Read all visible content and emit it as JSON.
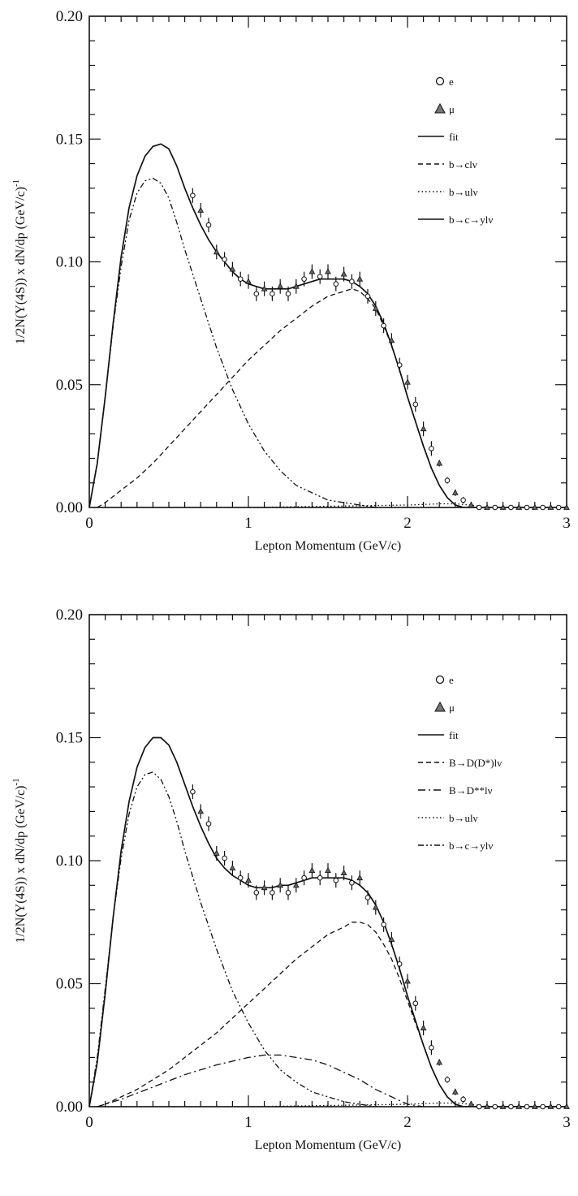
{
  "chart_data": [
    {
      "type": "line",
      "xlabel": "Lepton Momentum  (GeV/c)",
      "ylabel": "1/2N(Y(4S)) x dN/dp  (GeV/c)",
      "ylabel_sup": "-1",
      "xlim": [
        0,
        3
      ],
      "ylim": [
        0,
        0.2
      ],
      "xticks": [
        "0",
        "1",
        "2",
        "3"
      ],
      "yticks": [
        "0.00",
        "0.05",
        "0.10",
        "0.15",
        "0.20"
      ],
      "legend_position": "top-right",
      "legend": [
        "e",
        "μ",
        "fit",
        "b→clν",
        "b→ulν",
        "b→c→yl​ν"
      ],
      "series": [
        {
          "name": "fit",
          "style": "solid",
          "x": [
            0.0,
            0.05,
            0.1,
            0.15,
            0.2,
            0.25,
            0.3,
            0.35,
            0.4,
            0.45,
            0.5,
            0.55,
            0.6,
            0.65,
            0.7,
            0.75,
            0.8,
            0.85,
            0.9,
            0.95,
            1.0,
            1.05,
            1.1,
            1.15,
            1.2,
            1.25,
            1.3,
            1.35,
            1.4,
            1.45,
            1.5,
            1.55,
            1.6,
            1.65,
            1.7,
            1.75,
            1.8,
            1.85,
            1.9,
            1.95,
            2.0,
            2.05,
            2.1,
            2.15,
            2.2,
            2.25,
            2.3,
            2.35,
            2.4,
            2.5,
            2.6,
            2.7,
            2.8,
            2.9,
            3.0
          ],
          "y": [
            0.0,
            0.018,
            0.045,
            0.075,
            0.102,
            0.122,
            0.135,
            0.143,
            0.147,
            0.148,
            0.146,
            0.139,
            0.13,
            0.122,
            0.115,
            0.109,
            0.104,
            0.1,
            0.096,
            0.093,
            0.091,
            0.09,
            0.089,
            0.089,
            0.089,
            0.089,
            0.09,
            0.091,
            0.092,
            0.093,
            0.093,
            0.093,
            0.093,
            0.092,
            0.09,
            0.087,
            0.082,
            0.075,
            0.066,
            0.056,
            0.045,
            0.035,
            0.025,
            0.016,
            0.009,
            0.004,
            0.001,
            0.0,
            0.0,
            0.0,
            0.0,
            0.0,
            0.0,
            0.0,
            0.0
          ]
        },
        {
          "name": "b→clν",
          "style": "dashed",
          "x": [
            0.05,
            0.1,
            0.2,
            0.3,
            0.4,
            0.5,
            0.6,
            0.7,
            0.8,
            0.9,
            1.0,
            1.1,
            1.2,
            1.3,
            1.4,
            1.5,
            1.6,
            1.65,
            1.7,
            1.75,
            1.8,
            1.85,
            1.9,
            1.95,
            2.0,
            2.05,
            2.1,
            2.15,
            2.2,
            2.25,
            2.3,
            2.35,
            2.4
          ],
          "y": [
            0.0,
            0.002,
            0.007,
            0.012,
            0.018,
            0.025,
            0.032,
            0.039,
            0.046,
            0.053,
            0.06,
            0.066,
            0.072,
            0.077,
            0.082,
            0.086,
            0.088,
            0.089,
            0.088,
            0.085,
            0.081,
            0.074,
            0.066,
            0.056,
            0.045,
            0.035,
            0.025,
            0.016,
            0.009,
            0.004,
            0.001,
            0.0,
            0.0
          ]
        },
        {
          "name": "b→c→ylν",
          "style": "dash-dot-dot",
          "x": [
            0.0,
            0.05,
            0.1,
            0.15,
            0.2,
            0.25,
            0.3,
            0.35,
            0.4,
            0.45,
            0.5,
            0.55,
            0.6,
            0.7,
            0.8,
            0.9,
            1.0,
            1.1,
            1.2,
            1.3,
            1.4,
            1.5,
            1.6,
            1.7,
            1.8,
            1.9,
            2.0
          ],
          "y": [
            0.0,
            0.018,
            0.045,
            0.074,
            0.098,
            0.117,
            0.128,
            0.133,
            0.134,
            0.132,
            0.126,
            0.116,
            0.105,
            0.085,
            0.065,
            0.048,
            0.034,
            0.023,
            0.015,
            0.009,
            0.006,
            0.003,
            0.002,
            0.001,
            0.0,
            0.0,
            0.0
          ]
        },
        {
          "name": "b→ulν",
          "style": "dotted",
          "x": [
            0.0,
            1.0,
            1.5,
            2.0,
            2.2,
            2.3,
            2.4,
            2.5
          ],
          "y": [
            0.0,
            0.0,
            0.0005,
            0.001,
            0.0015,
            0.0015,
            0.001,
            0.0
          ]
        },
        {
          "name": "e",
          "style": "marker-circle",
          "x": [
            0.65,
            0.75,
            0.85,
            0.95,
            1.05,
            1.15,
            1.25,
            1.35,
            1.45,
            1.55,
            1.65,
            1.75,
            1.85,
            1.95,
            2.05,
            2.15,
            2.25,
            2.35,
            2.45,
            2.55,
            2.65,
            2.75,
            2.85,
            2.95
          ],
          "y": [
            0.127,
            0.115,
            0.101,
            0.093,
            0.087,
            0.087,
            0.087,
            0.093,
            0.094,
            0.091,
            0.092,
            0.086,
            0.074,
            0.058,
            0.042,
            0.024,
            0.011,
            0.003,
            0.0,
            0.0,
            0.0,
            0.0,
            0.0,
            0.0
          ]
        },
        {
          "name": "μ",
          "style": "marker-triangle",
          "x": [
            0.7,
            0.8,
            0.9,
            1.0,
            1.1,
            1.2,
            1.3,
            1.4,
            1.5,
            1.6,
            1.7,
            1.8,
            1.9,
            2.0,
            2.1,
            2.2,
            2.3,
            2.4,
            2.5,
            2.6,
            2.7,
            2.8,
            2.9,
            3.0
          ],
          "y": [
            0.121,
            0.104,
            0.097,
            0.092,
            0.089,
            0.09,
            0.09,
            0.096,
            0.096,
            0.095,
            0.093,
            0.081,
            0.068,
            0.051,
            0.032,
            0.018,
            0.006,
            0.001,
            0.0,
            0.0,
            0.0,
            0.0,
            0.0,
            0.0
          ]
        }
      ]
    },
    {
      "type": "line",
      "xlabel": "Lepton Momentum  (GeV/c)",
      "ylabel": "1/2N(Y(4S)) x dN/dp  (GeV/c)",
      "ylabel_sup": "-1",
      "xlim": [
        0,
        3
      ],
      "ylim": [
        0,
        0.2
      ],
      "xticks": [
        "0",
        "1",
        "2",
        "3"
      ],
      "yticks": [
        "0.00",
        "0.05",
        "0.10",
        "0.15",
        "0.20"
      ],
      "legend_position": "top-right",
      "legend": [
        "e",
        "μ",
        "fit",
        "B→D(D*)lν",
        "B→D**lν",
        "b→ulν",
        "b→c→ylν"
      ],
      "series": [
        {
          "name": "fit",
          "style": "solid",
          "x": [
            0.0,
            0.05,
            0.1,
            0.15,
            0.2,
            0.25,
            0.3,
            0.35,
            0.4,
            0.45,
            0.5,
            0.55,
            0.6,
            0.65,
            0.7,
            0.75,
            0.8,
            0.85,
            0.9,
            0.95,
            1.0,
            1.05,
            1.1,
            1.15,
            1.2,
            1.25,
            1.3,
            1.35,
            1.4,
            1.45,
            1.5,
            1.55,
            1.6,
            1.65,
            1.7,
            1.75,
            1.8,
            1.85,
            1.9,
            1.95,
            2.0,
            2.05,
            2.1,
            2.15,
            2.2,
            2.25,
            2.3,
            2.35,
            2.4,
            2.5,
            2.6,
            2.7,
            2.8,
            2.9,
            3.0
          ],
          "y": [
            0.0,
            0.018,
            0.046,
            0.077,
            0.104,
            0.124,
            0.138,
            0.146,
            0.15,
            0.15,
            0.147,
            0.14,
            0.131,
            0.122,
            0.114,
            0.107,
            0.101,
            0.097,
            0.094,
            0.092,
            0.09,
            0.089,
            0.089,
            0.089,
            0.09,
            0.09,
            0.091,
            0.092,
            0.093,
            0.093,
            0.093,
            0.093,
            0.093,
            0.092,
            0.09,
            0.087,
            0.082,
            0.075,
            0.066,
            0.056,
            0.045,
            0.035,
            0.025,
            0.016,
            0.009,
            0.004,
            0.001,
            0.0,
            0.0,
            0.0,
            0.0,
            0.0,
            0.0,
            0.0,
            0.0
          ]
        },
        {
          "name": "B→D(D*)lν",
          "style": "dashed",
          "x": [
            0.05,
            0.1,
            0.2,
            0.3,
            0.4,
            0.5,
            0.6,
            0.7,
            0.8,
            0.9,
            1.0,
            1.1,
            1.2,
            1.3,
            1.4,
            1.5,
            1.6,
            1.65,
            1.7,
            1.75,
            1.8,
            1.85,
            1.9,
            1.95,
            2.0,
            2.05,
            2.1,
            2.15,
            2.2,
            2.25,
            2.3,
            2.35,
            2.4
          ],
          "y": [
            0.0,
            0.001,
            0.004,
            0.007,
            0.011,
            0.015,
            0.02,
            0.025,
            0.03,
            0.036,
            0.042,
            0.048,
            0.054,
            0.06,
            0.065,
            0.07,
            0.073,
            0.075,
            0.075,
            0.074,
            0.071,
            0.066,
            0.06,
            0.052,
            0.043,
            0.034,
            0.025,
            0.016,
            0.009,
            0.004,
            0.001,
            0.0,
            0.0
          ]
        },
        {
          "name": "B→D**lν",
          "style": "dash-dot",
          "x": [
            0.05,
            0.2,
            0.4,
            0.6,
            0.8,
            1.0,
            1.1,
            1.2,
            1.3,
            1.4,
            1.5,
            1.6,
            1.7,
            1.8,
            1.9,
            2.0,
            2.1
          ],
          "y": [
            0.0,
            0.003,
            0.008,
            0.013,
            0.017,
            0.02,
            0.021,
            0.021,
            0.02,
            0.019,
            0.017,
            0.014,
            0.011,
            0.007,
            0.004,
            0.001,
            0.0
          ]
        },
        {
          "name": "b→c→ylν",
          "style": "dash-dot-dot",
          "x": [
            0.0,
            0.05,
            0.1,
            0.15,
            0.2,
            0.25,
            0.3,
            0.35,
            0.4,
            0.45,
            0.5,
            0.55,
            0.6,
            0.7,
            0.8,
            0.9,
            1.0,
            1.1,
            1.2,
            1.3,
            1.4,
            1.5,
            1.6,
            1.7,
            1.8,
            1.9,
            2.0
          ],
          "y": [
            0.0,
            0.02,
            0.048,
            0.077,
            0.101,
            0.119,
            0.13,
            0.135,
            0.136,
            0.133,
            0.126,
            0.116,
            0.104,
            0.083,
            0.064,
            0.047,
            0.034,
            0.023,
            0.015,
            0.01,
            0.006,
            0.004,
            0.002,
            0.001,
            0.0,
            0.0,
            0.0
          ]
        },
        {
          "name": "b→ulν",
          "style": "dotted",
          "x": [
            0.0,
            1.0,
            1.5,
            2.0,
            2.2,
            2.3,
            2.4,
            2.5
          ],
          "y": [
            0.0,
            0.0,
            0.0005,
            0.001,
            0.0015,
            0.0015,
            0.001,
            0.0
          ]
        },
        {
          "name": "e",
          "style": "marker-circle",
          "x": [
            0.65,
            0.75,
            0.85,
            0.95,
            1.05,
            1.15,
            1.25,
            1.35,
            1.45,
            1.55,
            1.65,
            1.75,
            1.85,
            1.95,
            2.05,
            2.15,
            2.25,
            2.35,
            2.45,
            2.55,
            2.65,
            2.75,
            2.85,
            2.95
          ],
          "y": [
            0.128,
            0.115,
            0.101,
            0.093,
            0.087,
            0.087,
            0.087,
            0.093,
            0.093,
            0.092,
            0.091,
            0.085,
            0.074,
            0.058,
            0.042,
            0.024,
            0.011,
            0.003,
            0.0,
            0.0,
            0.0,
            0.0,
            0.0,
            0.0
          ]
        },
        {
          "name": "μ",
          "style": "marker-triangle",
          "x": [
            0.7,
            0.8,
            0.9,
            1.0,
            1.1,
            1.2,
            1.3,
            1.4,
            1.5,
            1.6,
            1.7,
            1.8,
            1.9,
            2.0,
            2.1,
            2.2,
            2.3,
            2.4,
            2.5,
            2.6,
            2.7,
            2.8,
            2.9,
            3.0
          ],
          "y": [
            0.12,
            0.103,
            0.097,
            0.092,
            0.089,
            0.09,
            0.09,
            0.096,
            0.096,
            0.095,
            0.093,
            0.081,
            0.068,
            0.051,
            0.032,
            0.018,
            0.006,
            0.001,
            0.0,
            0.0,
            0.0,
            0.0,
            0.0,
            0.0
          ]
        }
      ]
    }
  ]
}
